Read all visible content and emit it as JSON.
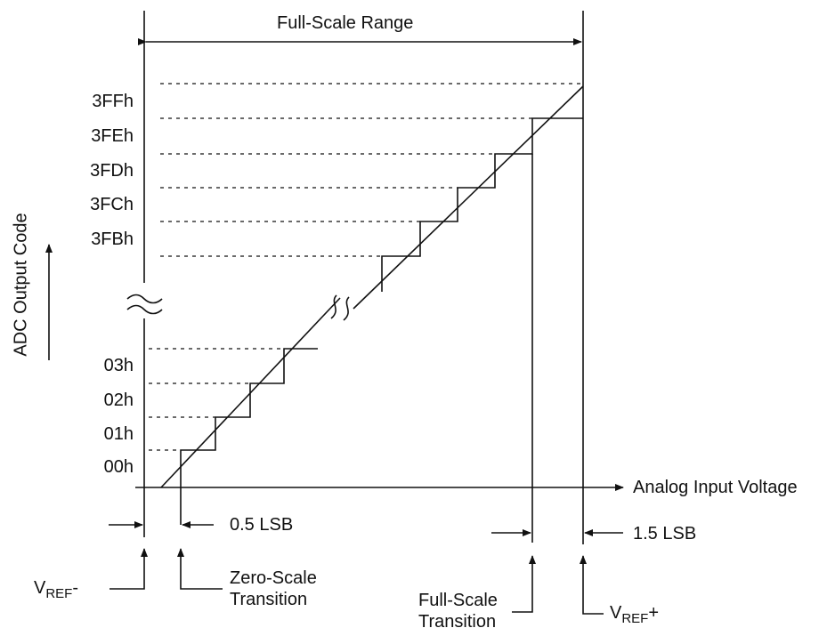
{
  "header": {
    "range_label": "Full-Scale Range"
  },
  "axes": {
    "y_label": "ADC Output Code",
    "x_label": "Analog Input Voltage"
  },
  "codes_high": [
    "3FFh",
    "3FEh",
    "3FDh",
    "3FCh",
    "3FBh"
  ],
  "codes_low": [
    "03h",
    "02h",
    "01h",
    "00h"
  ],
  "annotations": {
    "half_lsb": "0.5 LSB",
    "one_half_lsb": "1.5 LSB",
    "vref_minus_main": "V",
    "vref_minus_sub": "REF",
    "vref_minus_sign": "-",
    "vref_plus_main": "V",
    "vref_plus_sub": "REF",
    "vref_plus_sign": "+",
    "zero_scale_line1": "Zero-Scale",
    "zero_scale_line2": "Transition",
    "full_scale_line1": "Full-Scale",
    "full_scale_line2": "Transition"
  }
}
